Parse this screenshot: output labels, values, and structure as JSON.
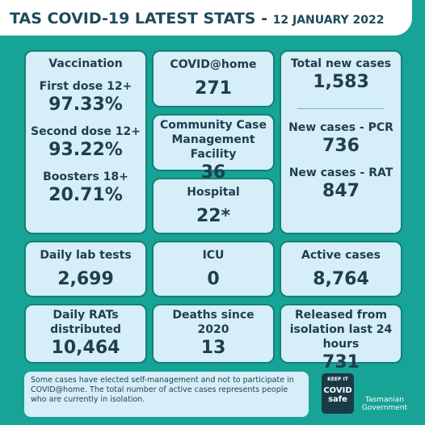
{
  "header": {
    "title": "TAS COVID-19 LATEST STATS",
    "separator": "-",
    "date": "12 JANUARY 2022"
  },
  "vaccination": {
    "heading": "Vaccination",
    "items": [
      {
        "label": "First dose 12+",
        "value": "97.33%"
      },
      {
        "label": "Second dose 12+",
        "value": "93.22%"
      },
      {
        "label": "Boosters 18+",
        "value": "20.71%"
      }
    ]
  },
  "cards": [
    {
      "label": "COVID@home",
      "value": "271"
    },
    {
      "label": "Community Case Management Facility",
      "value": "36"
    },
    {
      "label": "Hospital",
      "value": "22*"
    },
    {
      "label": "Daily lab tests",
      "value": "2,699"
    },
    {
      "label": "ICU",
      "value": "0"
    },
    {
      "label": "Active cases",
      "value": "8,764"
    },
    {
      "label": "Daily RATs distributed",
      "value": "10,464"
    },
    {
      "label": "Deaths since 2020",
      "value": "13"
    },
    {
      "label": "Released from isolation last 24 hours",
      "value": "731"
    }
  ],
  "cases": {
    "total": {
      "label": "Total new cases",
      "value": "1,583"
    },
    "pcr": {
      "label": "New cases - PCR",
      "value": "736"
    },
    "rat": {
      "label": "New cases - RAT",
      "value": "847"
    }
  },
  "footnote": "Some cases have elected self-management and not to participate in COVID@home. The total number of active cases represents people who are currently in isolation.",
  "logos": {
    "badge_top": "KEEP IT",
    "badge_main": "COVID",
    "badge_sub": "safe",
    "government_1": "Tasmanian",
    "government_2": "Government"
  }
}
